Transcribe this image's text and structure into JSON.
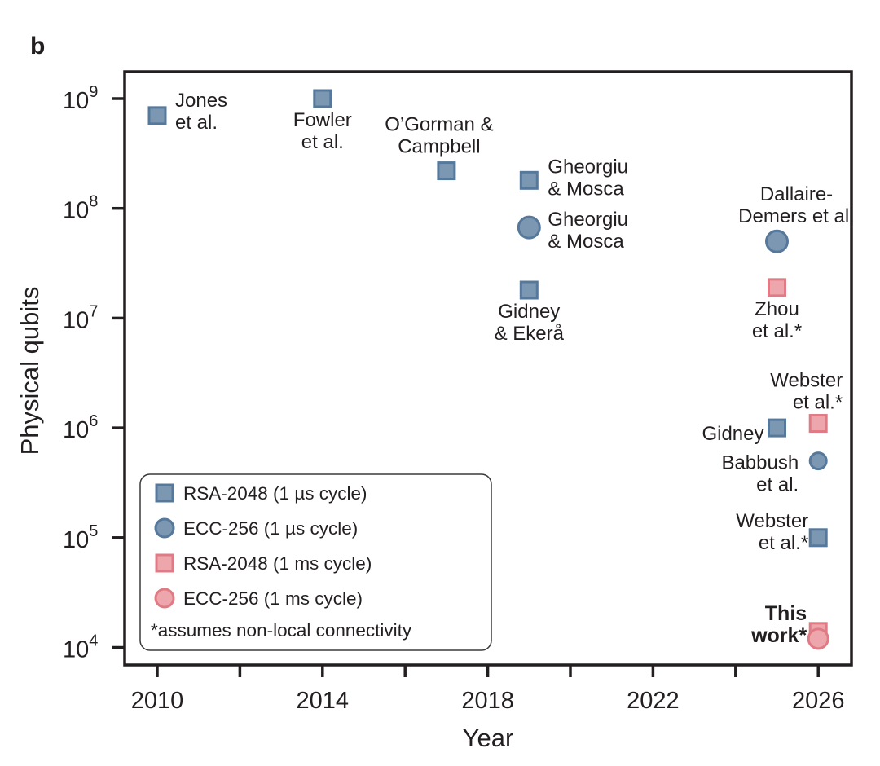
{
  "panel_label": "b",
  "colors": {
    "blue_fill": "#7b97b2",
    "blue_stroke": "#56789b",
    "pink_fill": "#eda6ab",
    "pink_stroke": "#e07b85",
    "axis": "#231f20"
  },
  "chart_data": {
    "type": "scatter",
    "title": "",
    "xlabel": "Year",
    "ylabel": "Physical qubits",
    "xlim": [
      2009.2,
      2026.8
    ],
    "ylim_log10": [
      3.8,
      9.25
    ],
    "yscale": "log",
    "grid": false,
    "x_ticks": [
      2010,
      2012,
      2014,
      2016,
      2018,
      2020,
      2022,
      2024,
      2026
    ],
    "x_tick_labels": [
      "2010",
      "",
      "2014",
      "",
      "2018",
      "",
      "2022",
      "",
      "2026"
    ],
    "y_ticks_exp": [
      4,
      5,
      6,
      7,
      8,
      9
    ],
    "y_tick_base": "10",
    "legend_position": "bottom-left",
    "series": [
      {
        "name": "RSA-2048 (1 µs cycle)",
        "marker": "square",
        "color": "blue"
      },
      {
        "name": "ECC-256 (1 µs cycle)",
        "marker": "circle",
        "color": "blue"
      },
      {
        "name": "RSA-2048 (1 ms cycle)",
        "marker": "square",
        "color": "pink"
      },
      {
        "name": "ECC-256 (1 ms cycle)",
        "marker": "circle",
        "color": "pink"
      }
    ],
    "legend_note": "*assumes non-local connectivity",
    "points": [
      {
        "series": 0,
        "x": 2010,
        "y": 700000000,
        "label": [
          "Jones",
          "et al."
        ],
        "label_pos": "right"
      },
      {
        "series": 0,
        "x": 2014,
        "y": 1000000000,
        "label": [
          "Fowler",
          "et al."
        ],
        "label_pos": "below"
      },
      {
        "series": 0,
        "x": 2017,
        "y": 220000000,
        "label": [
          "O’Gorman &",
          "Campbell"
        ],
        "label_pos": "above"
      },
      {
        "series": 0,
        "x": 2019,
        "y": 180000000,
        "label": [
          "Gheorgiu",
          "& Mosca"
        ],
        "label_pos": "right"
      },
      {
        "series": 1,
        "x": 2019,
        "y": 67000000,
        "label": [
          "Gheorgiu",
          "& Mosca"
        ],
        "label_pos": "right"
      },
      {
        "series": 0,
        "x": 2019,
        "y": 18000000,
        "label": [
          "Gidney",
          "& Ekerå"
        ],
        "label_pos": "below"
      },
      {
        "series": 1,
        "x": 2025,
        "y": 50000000,
        "label": [
          "Dallaire-",
          "Demers et al."
        ],
        "label_pos": "above"
      },
      {
        "series": 2,
        "x": 2025,
        "y": 19000000,
        "label": [
          "Zhou",
          "et al.*"
        ],
        "label_pos": "below"
      },
      {
        "series": 0,
        "x": 2025,
        "y": 1000000,
        "label": [
          "Gidney"
        ],
        "label_pos": "left"
      },
      {
        "series": 2,
        "x": 2026,
        "y": 1100000,
        "label": [
          "Webster",
          "et al.*"
        ],
        "label_pos": "above"
      },
      {
        "series": 1,
        "x": 2026,
        "y": 500000,
        "label": [
          "Babbush",
          "et al."
        ],
        "label_pos": "left"
      },
      {
        "series": 0,
        "x": 2026,
        "y": 100000,
        "label": [
          "Webster",
          "et al.*"
        ],
        "label_pos": "left"
      },
      {
        "series": 2,
        "x": 2026,
        "y": 14000,
        "label": [
          "This",
          "work*"
        ],
        "label_pos": "left",
        "bold": true
      },
      {
        "series": 3,
        "x": 2026,
        "y": 12000,
        "label": [],
        "label_pos": "none"
      }
    ]
  }
}
